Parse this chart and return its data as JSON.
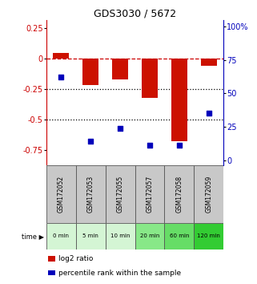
{
  "title": "GDS3030 / 5672",
  "samples": [
    "GSM172052",
    "GSM172053",
    "GSM172055",
    "GSM172057",
    "GSM172058",
    "GSM172059"
  ],
  "times": [
    "0 min",
    "5 min",
    "10 min",
    "20 min",
    "60 min",
    "120 min"
  ],
  "log2_ratio": [
    0.05,
    -0.22,
    -0.17,
    -0.32,
    -0.68,
    -0.06
  ],
  "percentile_rank": [
    62,
    14,
    24,
    11,
    11,
    35
  ],
  "ylim_left": [
    -0.875,
    0.32
  ],
  "ylim_right": [
    -3.5,
    105
  ],
  "yticks_left": [
    0.25,
    0,
    -0.25,
    -0.5,
    -0.75
  ],
  "yticks_right": [
    100,
    75,
    50,
    25,
    0
  ],
  "hlines_y": [
    0,
    -0.25,
    -0.5
  ],
  "hline_styles": [
    "--",
    ":",
    ":"
  ],
  "hline_colors": [
    "#cc0000",
    "black",
    "black"
  ],
  "bar_color": "#cc1100",
  "dot_color": "#0000bb",
  "time_row_colors": [
    "#d4f5d4",
    "#d4f5d4",
    "#d4f5d4",
    "#88e888",
    "#66dd66",
    "#33cc33"
  ],
  "gsm_row_color": "#c8c8c8",
  "left_axis_color": "#cc0000",
  "right_axis_color": "#0000bb",
  "bar_width": 0.55,
  "legend_red": "#cc1100",
  "legend_blue": "#0000bb"
}
